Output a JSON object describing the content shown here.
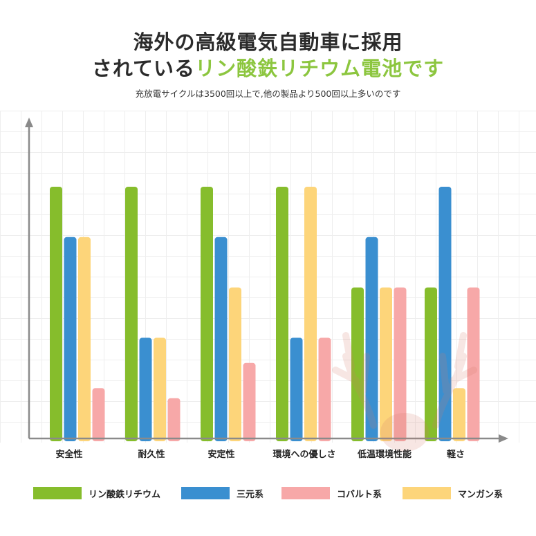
{
  "title": {
    "line1": "海外の高級電気自動車に採用",
    "line2_prefix": "されている",
    "line2_highlight": "リン酸鉄リチウム電池です"
  },
  "subtitle": "充放電サイクルは3500回以上で,他の製品より500回以上多いのです",
  "colors": {
    "green": "#86bd2c",
    "blue": "#3a8fd0",
    "pink": "#f7a8a8",
    "yellow": "#fdd57a",
    "title_highlight": "#8cc63f",
    "axis": "#8a8a8a"
  },
  "watermark_icon": "deer-antler-logo-icon",
  "chart_data": {
    "type": "bar",
    "categories": [
      "安全性",
      "耐久性",
      "安定性",
      "環境への優しさ",
      "低温環境性能",
      "軽さ"
    ],
    "series": [
      {
        "name": "リン酸鉄リチウム",
        "color": "#86bd2c",
        "values": [
          5,
          5,
          5,
          5,
          3,
          3
        ]
      },
      {
        "name": "三元系",
        "color": "#3a8fd0",
        "values": [
          4,
          2,
          4,
          2,
          4,
          5
        ]
      },
      {
        "name": "マンガン系",
        "color": "#fdd57a",
        "values": [
          4,
          2,
          3,
          5,
          3,
          1
        ]
      },
      {
        "name": "コバルト系",
        "color": "#f7a8a8",
        "values": [
          1,
          0.8,
          1.5,
          2,
          3,
          3
        ]
      }
    ],
    "bar_order": [
      [
        "リン酸鉄リチウム",
        "三元系",
        "マンガン系",
        "コバルト系"
      ],
      [
        "リン酸鉄リチウム",
        "三元系",
        "マンガン系",
        "コバルト系"
      ],
      [
        "リン酸鉄リチウム",
        "三元系",
        "マンガン系",
        "コバルト系"
      ],
      [
        "リン酸鉄リチウム",
        "三元系",
        "マンガン系",
        "コバルト系"
      ],
      [
        "リン酸鉄リチウム",
        "三元系",
        "マンガン系",
        "コバルト系"
      ],
      [
        "リン酸鉄リチウム",
        "三元系",
        "マンガン系",
        "コバルト系"
      ]
    ],
    "ylim": [
      0,
      5
    ],
    "grid": true,
    "axis_ticks": false,
    "legend_position": "bottom",
    "legend_order": [
      "リン酸鉄リチウム",
      "三元系",
      "コバルト系",
      "マンガン系"
    ]
  }
}
